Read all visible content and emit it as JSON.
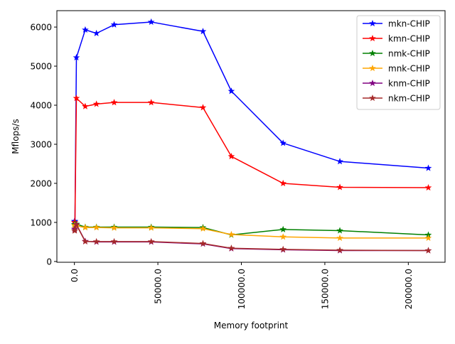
{
  "chart_data": {
    "type": "line",
    "title": "",
    "xlabel": "Memory footprint",
    "ylabel": "Mflops/s",
    "xlim": [
      -10500,
      222000
    ],
    "ylim": [
      -20,
      6420
    ],
    "x_ticks": [
      0,
      50000,
      100000,
      150000,
      200000
    ],
    "x_tick_labels": [
      "0.0",
      "50000.0",
      "100000.0",
      "150000.0",
      "200000.0"
    ],
    "y_ticks": [
      0,
      1000,
      2000,
      3000,
      4000,
      5000,
      6000
    ],
    "y_tick_labels": [
      "0",
      "1000",
      "2000",
      "3000",
      "4000",
      "5000",
      "6000"
    ],
    "grid": false,
    "legend_position": "top-right",
    "x": [
      24,
      320,
      1200,
      6500,
      13200,
      23800,
      46000,
      77000,
      94000,
      125000,
      159000,
      212000
    ],
    "series": [
      {
        "name": "mkn-CHIP",
        "color": "#0000ff",
        "values": [
          1030,
          1030,
          5220,
          5930,
          5840,
          6060,
          6130,
          5890,
          4360,
          3030,
          2560,
          2390
        ]
      },
      {
        "name": "kmn-CHIP",
        "color": "#ff0000",
        "values": [
          1000,
          1000,
          4180,
          3970,
          4030,
          4070,
          4070,
          3940,
          2690,
          2000,
          1900,
          1890
        ]
      },
      {
        "name": "nmk-CHIP",
        "color": "#008000",
        "values": [
          950,
          950,
          960,
          880,
          880,
          880,
          880,
          870,
          680,
          820,
          790,
          680
        ]
      },
      {
        "name": "mnk-CHIP",
        "color": "#ffa500",
        "values": [
          920,
          920,
          910,
          870,
          870,
          860,
          860,
          840,
          690,
          630,
          600,
          600
        ]
      },
      {
        "name": "knm-CHIP",
        "color": "#800080",
        "values": [
          830,
          830,
          950,
          520,
          500,
          500,
          500,
          450,
          330,
          300,
          280,
          280
        ]
      },
      {
        "name": "nkm-CHIP",
        "color": "#a52a2a",
        "values": [
          790,
          790,
          940,
          510,
          510,
          510,
          510,
          460,
          340,
          310,
          290,
          280
        ]
      }
    ]
  }
}
